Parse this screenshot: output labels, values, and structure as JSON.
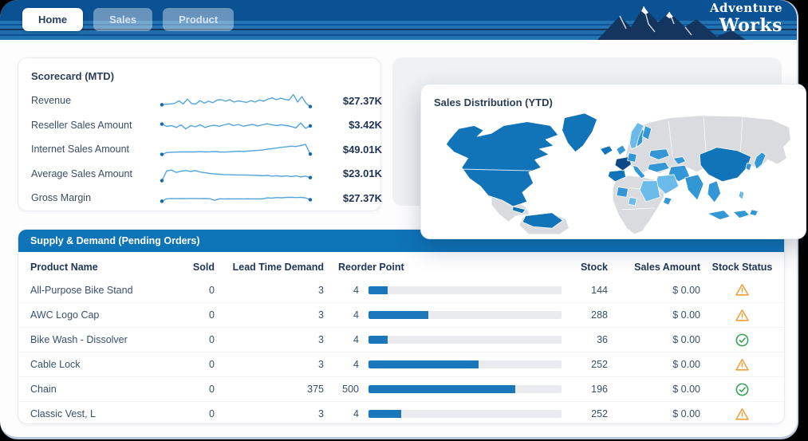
{
  "header": {
    "tabs": [
      {
        "label": "Home",
        "active": true
      },
      {
        "label": "Sales",
        "active": false
      },
      {
        "label": "Product",
        "active": false
      }
    ],
    "brand": {
      "line1": "Adventure",
      "line2": "Works"
    },
    "colors": {
      "bar_blue": "#0a5294",
      "stripe_blue": "#2173b2",
      "stripe_navy": "#16365f",
      "mountain_navy": "#14355e"
    }
  },
  "scorecard": {
    "title": "Scorecard (MTD)",
    "spark_color": "#54a4dc",
    "dot_color": "#1668b3",
    "rows": [
      {
        "label": "Revenue",
        "value": "$27.37K",
        "spark": [
          0.25,
          0.28,
          0.3,
          0.33,
          0.5,
          0.3,
          0.62,
          0.32,
          0.3,
          0.52,
          0.35,
          0.48,
          0.38,
          0.55,
          0.58,
          0.48,
          0.58,
          0.42,
          0.5,
          0.45,
          0.4,
          0.52,
          0.42,
          0.56,
          0.48,
          0.62,
          0.7,
          0.58,
          0.68,
          0.6,
          0.55,
          0.92,
          0.42,
          0.78,
          0.35,
          0.12
        ]
      },
      {
        "label": "Reseller Sales Amount",
        "value": "$3.42K",
        "spark": [
          0.6,
          0.45,
          0.5,
          0.38,
          0.55,
          0.28,
          0.5,
          0.42,
          0.55,
          0.38,
          0.48,
          0.52,
          0.45,
          0.55,
          0.62,
          0.5,
          0.58,
          0.45,
          0.52,
          0.58,
          0.48,
          0.55,
          0.62,
          0.55,
          0.5,
          0.56,
          0.5,
          0.44,
          0.35,
          0.68,
          0.32,
          0.48
        ]
      },
      {
        "label": "Internet Sales Amount",
        "value": "$49.01K",
        "spark": [
          0.18,
          0.3,
          0.32,
          0.33,
          0.34,
          0.34,
          0.35,
          0.34,
          0.36,
          0.34,
          0.35,
          0.37,
          0.34,
          0.33,
          0.35,
          0.37,
          0.39,
          0.37,
          0.4,
          0.42,
          0.44,
          0.47,
          0.52,
          0.56,
          0.6,
          0.65,
          0.68,
          0.72,
          0.7,
          0.76,
          0.84,
          0.2
        ]
      },
      {
        "label": "Average Sales Amount",
        "value": "$23.01K",
        "spark": [
          0.08,
          0.72,
          0.78,
          0.62,
          0.7,
          0.75,
          0.68,
          0.74,
          0.65,
          0.6,
          0.55,
          0.52,
          0.5,
          0.48,
          0.47,
          0.46,
          0.45,
          0.45,
          0.44,
          0.43,
          0.42,
          0.4,
          0.42,
          0.38,
          0.4,
          0.37,
          0.39,
          0.35,
          0.4,
          0.32,
          0.38,
          0.28
        ]
      },
      {
        "label": "Gross Margin",
        "value": "$27.37K",
        "spark": [
          0.3,
          0.46,
          0.48,
          0.47,
          0.48,
          0.47,
          0.48,
          0.48,
          0.47,
          0.48,
          0.47,
          0.36,
          0.46,
          0.45,
          0.46,
          0.45,
          0.46,
          0.45,
          0.46,
          0.45,
          0.46,
          0.45,
          0.52,
          0.5,
          0.54,
          0.52,
          0.55,
          0.56,
          0.54,
          0.56,
          0.52,
          0.4
        ]
      }
    ]
  },
  "map_card": {
    "title": "Sales Distribution (YTD)",
    "palette": {
      "darkest": "#0d4a85",
      "dark": "#1173b8",
      "medium": "#3397d6",
      "light": "#6cbaea",
      "gray": "#d9dbde"
    }
  },
  "supply_table": {
    "title": "Supply & Demand (Pending Orders)",
    "columns": [
      "Product Name",
      "Sold",
      "Lead Time Demand",
      "Reorder Point",
      "Stock",
      "Sales Amount",
      "Stock Status"
    ],
    "bar_color": "#1b77b9",
    "track_color": "#e9ebee",
    "status_colors": {
      "warning": "#f2a03d",
      "ok": "#35a456"
    },
    "rows": [
      {
        "name": "All-Purpose Bike Stand",
        "sold": "0",
        "lead": "3",
        "reorder": "4",
        "bar_pct": 10,
        "stock": "144",
        "sales": "$ 0.00",
        "status": "warning"
      },
      {
        "name": "AWC Logo Cap",
        "sold": "0",
        "lead": "3",
        "reorder": "4",
        "bar_pct": 31,
        "stock": "288",
        "sales": "$ 0.00",
        "status": "warning"
      },
      {
        "name": "Bike Wash - Dissolver",
        "sold": "0",
        "lead": "3",
        "reorder": "4",
        "bar_pct": 10,
        "stock": "36",
        "sales": "$ 0.00",
        "status": "ok"
      },
      {
        "name": "Cable Lock",
        "sold": "0",
        "lead": "3",
        "reorder": "4",
        "bar_pct": 57,
        "stock": "252",
        "sales": "$ 0.00",
        "status": "warning"
      },
      {
        "name": "Chain",
        "sold": "0",
        "lead": "375",
        "reorder": "500",
        "bar_pct": 76,
        "stock": "196",
        "sales": "$ 0.00",
        "status": "ok"
      },
      {
        "name": "Classic Vest, L",
        "sold": "0",
        "lead": "3",
        "reorder": "4",
        "bar_pct": 17,
        "stock": "252",
        "sales": "$ 0.00",
        "status": "warning"
      }
    ]
  }
}
